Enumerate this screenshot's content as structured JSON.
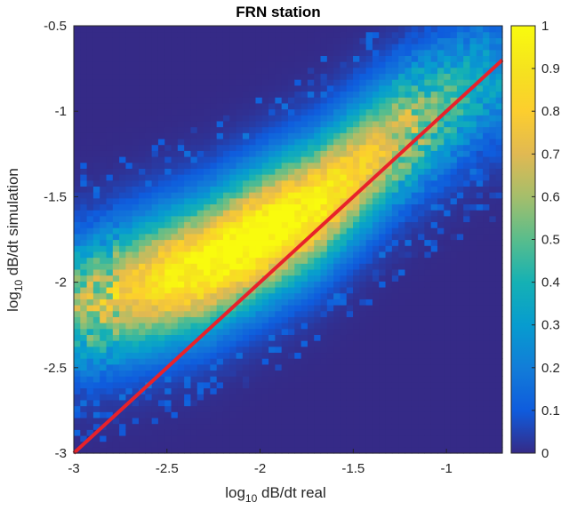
{
  "chart_data": {
    "type": "heatmap",
    "title": "FRN station",
    "xlabel": {
      "prefix": "log",
      "subscript": "10",
      "suffix": " dB/dt real"
    },
    "ylabel": {
      "prefix": "log",
      "subscript": "10",
      "suffix": " dB/dt simulation"
    },
    "xlim": [
      -3,
      -0.7
    ],
    "ylim": [
      -3,
      -0.5
    ],
    "x_ticks": [
      -3,
      -2.5,
      -2,
      -1.5,
      -1
    ],
    "x_tick_labels": [
      "-3",
      "-2.5",
      "-2",
      "-1.5",
      "-1"
    ],
    "y_ticks": [
      -3,
      -2.5,
      -2,
      -1.5,
      -1,
      -0.5
    ],
    "y_tick_labels": [
      "-3",
      "-2.5",
      "-2",
      "-1.5",
      "-1",
      "-0.5"
    ],
    "colorbar": {
      "range": [
        0,
        1
      ],
      "ticks": [
        0,
        0.1,
        0.2,
        0.3,
        0.4,
        0.5,
        0.6,
        0.7,
        0.8,
        0.9,
        1
      ],
      "tick_labels": [
        "0",
        "0.1",
        "0.2",
        "0.3",
        "0.4",
        "0.5",
        "0.6",
        "0.7",
        "0.8",
        "0.9",
        "1"
      ],
      "colormap": "parula"
    },
    "reference_line": {
      "x": [
        -3,
        -0.7
      ],
      "y": [
        -3,
        -0.7
      ],
      "color": "#e8222a"
    },
    "density_model": {
      "ridge_points": [
        [
          -2.9,
          -2.12
        ],
        [
          -2.3,
          -1.9
        ],
        [
          -1.7,
          -1.55
        ],
        [
          -1.2,
          -1.1
        ],
        [
          -0.8,
          -0.82
        ]
      ],
      "across_spread": 0.26,
      "along_center_x": -2.05,
      "along_spread": 0.75
    },
    "grid": false,
    "legend": "none"
  }
}
